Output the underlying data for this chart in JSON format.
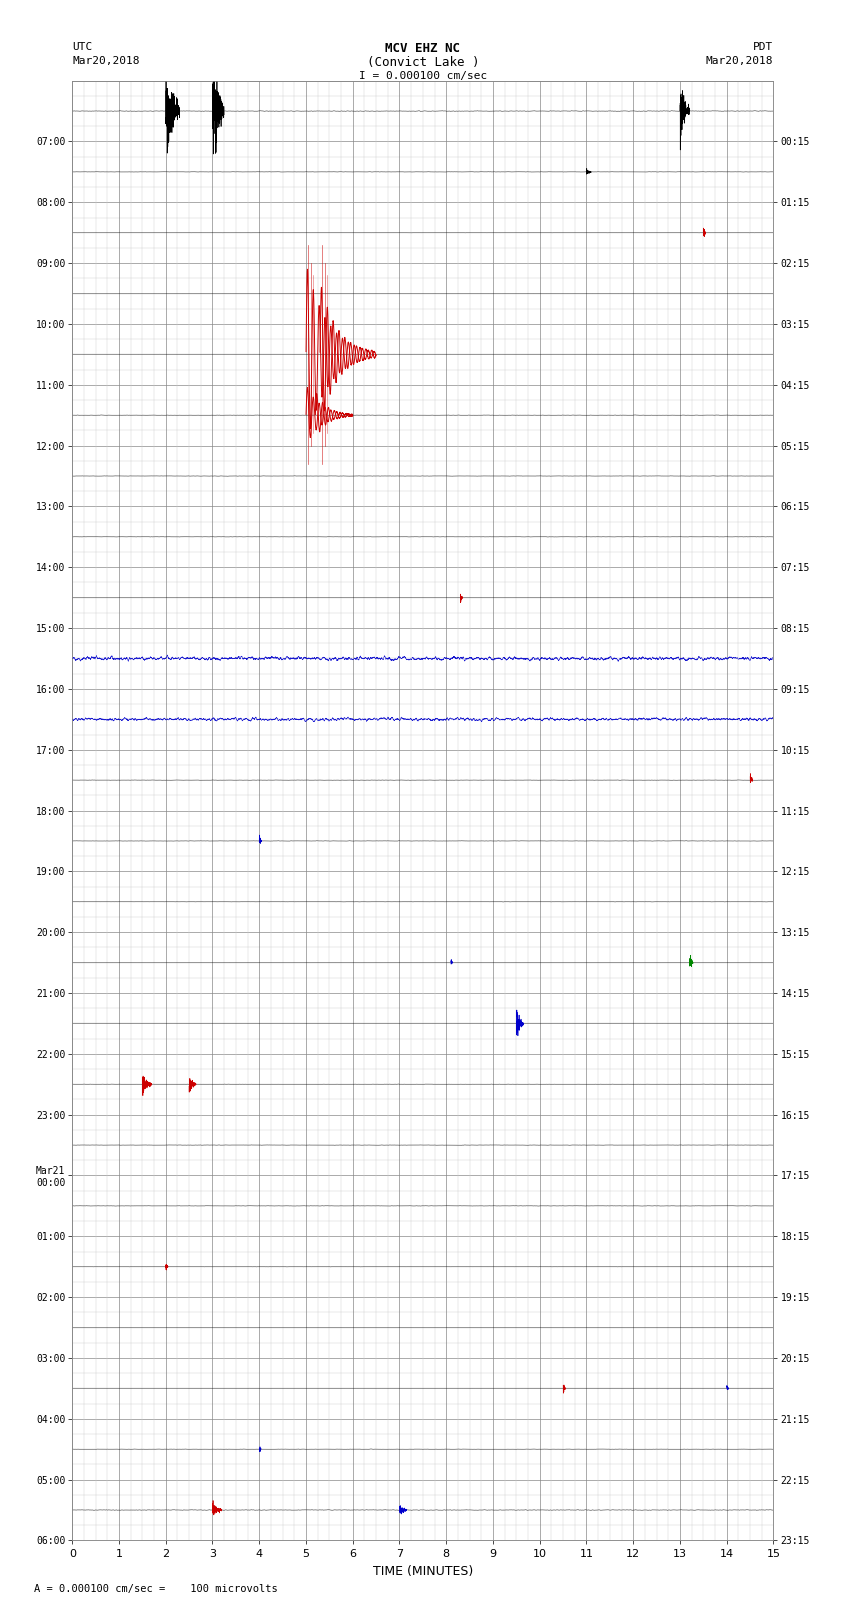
{
  "title_line1": "MCV EHZ NC",
  "title_line2": "(Convict Lake )",
  "title_line3": "I = 0.000100 cm/sec",
  "left_header_line1": "UTC",
  "left_header_line2": "Mar20,2018",
  "right_header_line1": "PDT",
  "right_header_line2": "Mar20,2018",
  "footer_text": "A = 0.000100 cm/sec =    100 microvolts",
  "xlabel": "TIME (MINUTES)",
  "xlim": [
    0,
    15
  ],
  "xticks": [
    0,
    1,
    2,
    3,
    4,
    5,
    6,
    7,
    8,
    9,
    10,
    11,
    12,
    13,
    14,
    15
  ],
  "num_rows": 24,
  "utc_labels": [
    "07:00",
    "08:00",
    "09:00",
    "10:00",
    "11:00",
    "12:00",
    "13:00",
    "14:00",
    "15:00",
    "16:00",
    "17:00",
    "18:00",
    "19:00",
    "20:00",
    "21:00",
    "22:00",
    "23:00",
    "Mar21\n00:00",
    "01:00",
    "02:00",
    "03:00",
    "04:00",
    "05:00",
    "06:00"
  ],
  "pdt_labels": [
    "00:15",
    "01:15",
    "02:15",
    "03:15",
    "04:15",
    "05:15",
    "06:15",
    "07:15",
    "08:15",
    "09:15",
    "10:15",
    "11:15",
    "12:15",
    "13:15",
    "14:15",
    "15:15",
    "16:15",
    "17:15",
    "18:15",
    "19:15",
    "20:15",
    "21:15",
    "22:15",
    "23:15"
  ],
  "bg_color": "#ffffff",
  "trace_color_black": "#000000",
  "trace_color_red": "#cc0000",
  "trace_color_blue": "#0000cc",
  "trace_color_green": "#008800",
  "grid_major_color": "#888888",
  "grid_minor_color": "#cccccc",
  "row_label_fontsize": 7,
  "axis_label_fontsize": 8,
  "title_fontsize": 9
}
